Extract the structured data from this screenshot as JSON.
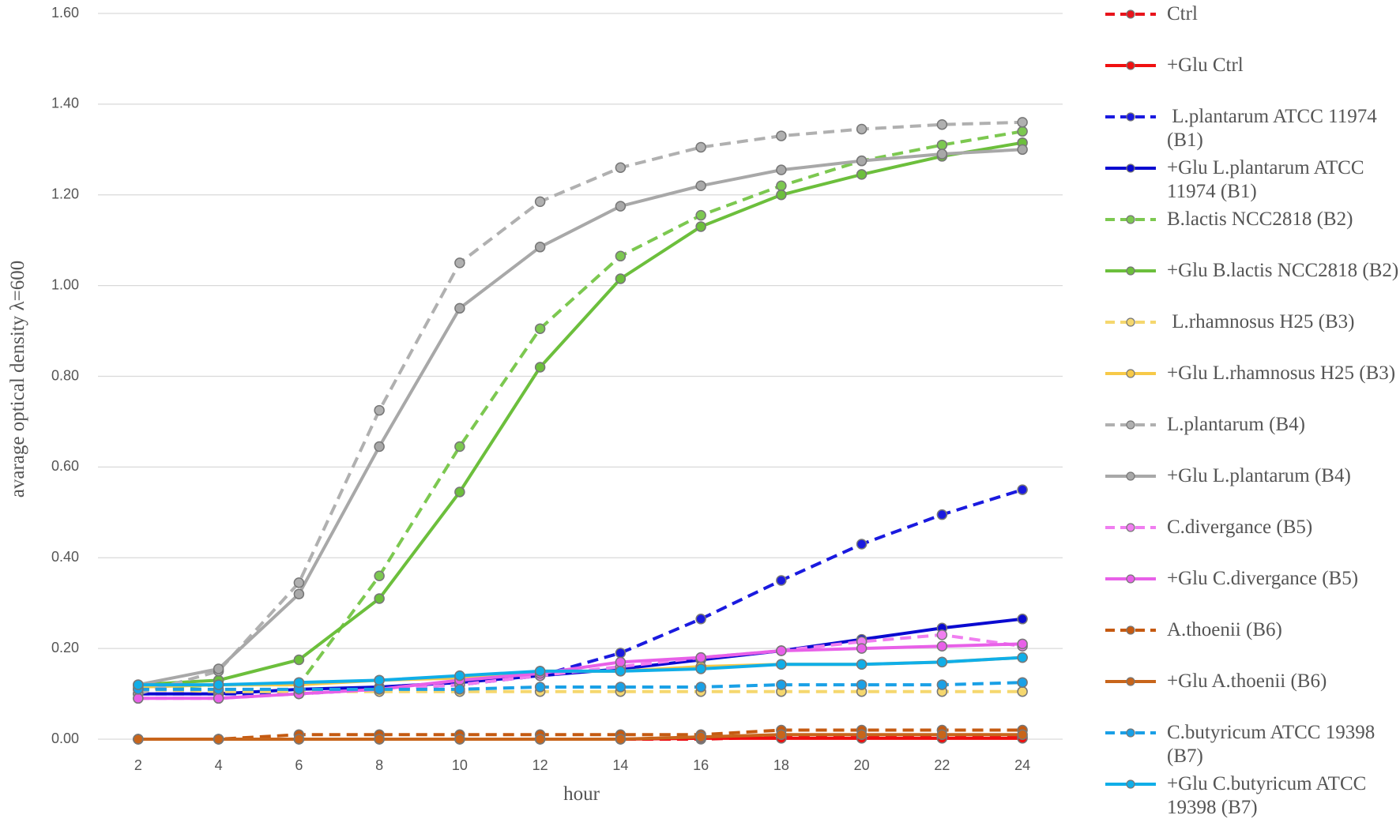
{
  "chart_data": {
    "type": "line",
    "x_label": "hour",
    "y_label": "avarage optical density  λ=600",
    "x": [
      2,
      4,
      6,
      8,
      10,
      12,
      14,
      16,
      18,
      20,
      22,
      24
    ],
    "xlim": [
      1,
      25
    ],
    "xticks": [
      2,
      4,
      6,
      8,
      10,
      12,
      14,
      16,
      18,
      20,
      22,
      24
    ],
    "ylim": [
      0,
      1.6
    ],
    "yticks": [
      {
        "value": 0,
        "label": "0.00"
      },
      {
        "value": 0.2,
        "label": "0.20"
      },
      {
        "value": 0.4,
        "label": "0.40"
      },
      {
        "value": 0.6,
        "label": "0.60"
      },
      {
        "value": 0.8,
        "label": "0.80"
      },
      {
        "value": 1.0,
        "label": "1.00"
      },
      {
        "value": 1.2,
        "label": "1.20"
      },
      {
        "value": 1.4,
        "label": "1.40"
      },
      {
        "value": 1.6,
        "label": "1.60"
      }
    ],
    "grid": true,
    "legend": "right",
    "series": [
      {
        "name": "Ctrl",
        "color": "#e8141c",
        "style": "dashed",
        "values": [
          0,
          0,
          0,
          0,
          0,
          0,
          0,
          0,
          0.005,
          0.005,
          0.005,
          0.005
        ]
      },
      {
        "name": "+Glu Ctrl",
        "color": "#f01010",
        "style": "solid",
        "values": [
          0,
          0,
          0,
          0,
          0,
          0,
          0,
          0.002,
          0.002,
          0.002,
          0.002,
          0.002
        ]
      },
      {
        "name": " L.plantarum ATCC 11974 (B1)",
        "color": "#1a1adf",
        "style": "dashed",
        "values": [
          0.1,
          0.1,
          0.1,
          0.11,
          0.12,
          0.14,
          0.19,
          0.265,
          0.35,
          0.43,
          0.495,
          0.55
        ]
      },
      {
        "name": "+Glu L.plantarum ATCC 11974 (B1)",
        "color": "#0a0ad0",
        "style": "solid",
        "values": [
          0.1,
          0.1,
          0.11,
          0.115,
          0.125,
          0.14,
          0.155,
          0.175,
          0.195,
          0.22,
          0.245,
          0.265
        ]
      },
      {
        "name": "B.lactis NCC2818 (B2)",
        "color": "#7cc850",
        "style": "dashed",
        "values": [
          0.11,
          0.12,
          0.12,
          0.36,
          0.645,
          0.905,
          1.065,
          1.155,
          1.22,
          1.275,
          1.31,
          1.34
        ]
      },
      {
        "name": "+Glu B.lactis NCC2818 (B2)",
        "color": "#6cbf3c",
        "style": "solid",
        "values": [
          0.12,
          0.13,
          0.175,
          0.31,
          0.545,
          0.82,
          1.015,
          1.13,
          1.2,
          1.245,
          1.285,
          1.315
        ]
      },
      {
        "name": " L.rhamnosus H25 (B3)",
        "color": "#f5d76e",
        "style": "dashed",
        "values": [
          0.11,
          0.105,
          0.105,
          0.105,
          0.105,
          0.105,
          0.105,
          0.105,
          0.105,
          0.105,
          0.105,
          0.105
        ]
      },
      {
        "name": "+Glu L.rhamnosus H25 (B3)",
        "color": "#f7c948",
        "style": "solid",
        "values": [
          0.115,
          0.12,
          0.12,
          0.13,
          0.135,
          0.15,
          0.15,
          0.16,
          0.165,
          0.165,
          0.17,
          0.18
        ]
      },
      {
        "name": "L.plantarum (B4)",
        "color": "#b0b0b0",
        "style": "dashed",
        "values": [
          0.1,
          0.15,
          0.345,
          0.725,
          1.05,
          1.185,
          1.26,
          1.305,
          1.33,
          1.345,
          1.355,
          1.36
        ]
      },
      {
        "name": "+Glu L.plantarum (B4)",
        "color": "#a8a8a8",
        "style": "solid",
        "values": [
          0.12,
          0.155,
          0.32,
          0.645,
          0.95,
          1.085,
          1.175,
          1.22,
          1.255,
          1.275,
          1.29,
          1.3
        ]
      },
      {
        "name": "C.divergance (B5)",
        "color": "#f07ef0",
        "style": "dashed",
        "values": [
          0.09,
          0.09,
          0.1,
          0.11,
          0.12,
          0.14,
          0.16,
          0.18,
          0.195,
          0.215,
          0.23,
          0.205
        ]
      },
      {
        "name": "+Glu C.divergance (B5)",
        "color": "#e860e8",
        "style": "solid",
        "values": [
          0.09,
          0.09,
          0.1,
          0.11,
          0.13,
          0.145,
          0.17,
          0.18,
          0.195,
          0.2,
          0.205,
          0.21
        ]
      },
      {
        "name": "A.thoenii (B6)",
        "color": "#c55a11",
        "style": "dashed",
        "values": [
          0,
          0,
          0.01,
          0.01,
          0.01,
          0.01,
          0.01,
          0.01,
          0.02,
          0.02,
          0.02,
          0.02
        ]
      },
      {
        "name": "+Glu A.thoenii (B6)",
        "color": "#c8651b",
        "style": "solid",
        "values": [
          0,
          0,
          0,
          0,
          0,
          0,
          0,
          0.005,
          0.01,
          0.01,
          0.01,
          0.01
        ]
      },
      {
        "name": "C.butyricum ATCC 19398 (B7)",
        "color": "#1aa0e6",
        "style": "dashed",
        "values": [
          0.11,
          0.11,
          0.11,
          0.11,
          0.11,
          0.115,
          0.115,
          0.115,
          0.12,
          0.12,
          0.12,
          0.125
        ]
      },
      {
        "name": "+Glu C.butyricum ATCC 19398 (B7)",
        "color": "#10aee8",
        "style": "solid",
        "values": [
          0.12,
          0.12,
          0.125,
          0.13,
          0.14,
          0.15,
          0.15,
          0.155,
          0.165,
          0.165,
          0.17,
          0.18
        ]
      }
    ]
  }
}
